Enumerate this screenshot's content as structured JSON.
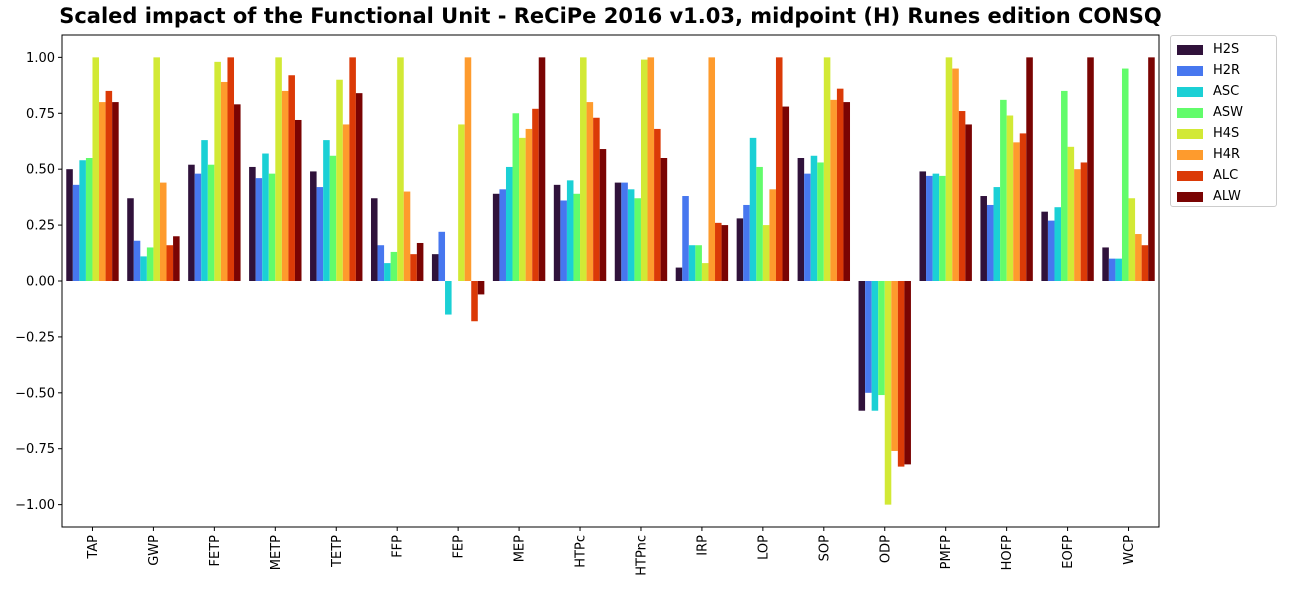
{
  "chart_data": {
    "type": "bar",
    "title": "Scaled impact of the Functional Unit - ReCiPe 2016 v1.03, midpoint (H) Runes edition CONSQ",
    "xlabel": "",
    "ylabel": "",
    "ylim": [
      -1.1,
      1.1
    ],
    "yticks": [
      -1.0,
      -0.75,
      -0.5,
      -0.25,
      0.0,
      0.25,
      0.5,
      0.75,
      1.0
    ],
    "ytick_labels": [
      "−1.00",
      "−0.75",
      "−0.50",
      "−0.25",
      "0.00",
      "0.25",
      "0.50",
      "0.75",
      "1.00"
    ],
    "grid": false,
    "legend_position": "outside-top-right",
    "categories": [
      "TAP",
      "GWP",
      "FETP",
      "METP",
      "TETP",
      "FFP",
      "FEP",
      "MEP",
      "HTPc",
      "HTPnc",
      "IRP",
      "LOP",
      "SOP",
      "ODP",
      "PMFP",
      "HOFP",
      "EOFP",
      "WCP"
    ],
    "series": [
      {
        "name": "H2S",
        "color": "#30123b",
        "values": [
          0.5,
          0.37,
          0.52,
          0.51,
          0.49,
          0.37,
          0.12,
          0.39,
          0.43,
          0.44,
          0.06,
          0.28,
          0.55,
          -0.58,
          0.49,
          0.38,
          0.31,
          0.15
        ]
      },
      {
        "name": "H2R",
        "color": "#4777ef",
        "values": [
          0.43,
          0.18,
          0.48,
          0.46,
          0.42,
          0.16,
          0.22,
          0.41,
          0.36,
          0.44,
          0.38,
          0.34,
          0.48,
          -0.5,
          0.47,
          0.34,
          0.27,
          0.1
        ]
      },
      {
        "name": "ASC",
        "color": "#1bd0d5",
        "values": [
          0.54,
          0.11,
          0.63,
          0.57,
          0.63,
          0.08,
          -0.15,
          0.51,
          0.45,
          0.41,
          0.16,
          0.64,
          0.56,
          -0.58,
          0.48,
          0.42,
          0.33,
          0.1
        ]
      },
      {
        "name": "ASW",
        "color": "#62fc6b",
        "values": [
          0.55,
          0.15,
          0.52,
          0.48,
          0.56,
          0.13,
          0.0,
          0.75,
          0.39,
          0.37,
          0.16,
          0.51,
          0.53,
          -0.51,
          0.47,
          0.81,
          0.85,
          0.95
        ]
      },
      {
        "name": "H4S",
        "color": "#d2e935",
        "values": [
          1.0,
          1.0,
          0.98,
          1.0,
          0.9,
          1.0,
          0.7,
          0.64,
          1.0,
          0.99,
          0.08,
          0.25,
          1.0,
          -1.0,
          1.0,
          0.74,
          0.6,
          0.37
        ]
      },
      {
        "name": "H4R",
        "color": "#fe9b2d",
        "values": [
          0.8,
          0.44,
          0.89,
          0.85,
          0.7,
          0.4,
          1.0,
          0.68,
          0.8,
          1.0,
          1.0,
          0.41,
          0.81,
          -0.76,
          0.95,
          0.62,
          0.5,
          0.21
        ]
      },
      {
        "name": "ALC",
        "color": "#db3a07",
        "values": [
          0.85,
          0.16,
          1.0,
          0.92,
          1.0,
          0.12,
          -0.18,
          0.77,
          0.73,
          0.68,
          0.26,
          1.0,
          0.86,
          -0.83,
          0.76,
          0.66,
          0.53,
          0.16
        ]
      },
      {
        "name": "ALW",
        "color": "#7a0403",
        "values": [
          0.8,
          0.2,
          0.79,
          0.72,
          0.84,
          0.17,
          -0.06,
          1.0,
          0.59,
          0.55,
          0.25,
          0.78,
          0.8,
          -0.82,
          0.7,
          1.0,
          1.0,
          1.0
        ]
      }
    ]
  }
}
